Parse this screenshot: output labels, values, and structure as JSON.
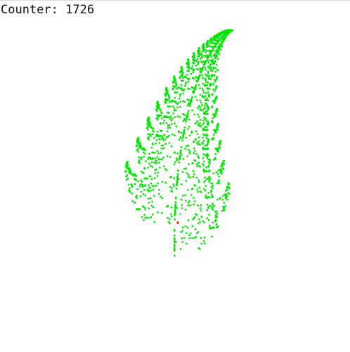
{
  "counter": {
    "label": "Counter:",
    "value": "1726"
  },
  "fern": {
    "point_count": 1726,
    "point_color": "#00e600",
    "current_point_color": "#e00000",
    "background_color": "#ffffff"
  }
}
